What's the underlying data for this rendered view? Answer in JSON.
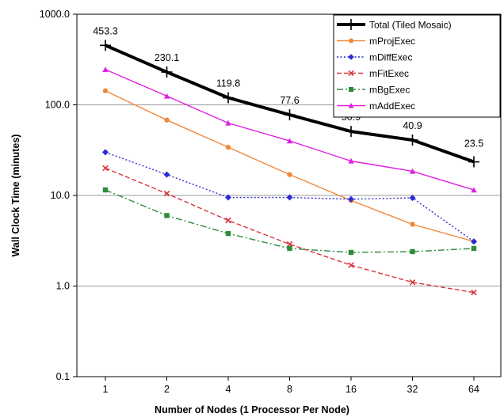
{
  "chart_data": {
    "type": "line",
    "title": "",
    "xlabel": "Number of Nodes (1 Processor Per Node)",
    "ylabel": "Wall Clock Time (minutes)",
    "y_scale": "log",
    "ylim": [
      0.1,
      1000
    ],
    "y_ticks": [
      "0.1",
      "1.0",
      "10.0",
      "100.0",
      "1000.0"
    ],
    "categories": [
      "1",
      "2",
      "4",
      "8",
      "16",
      "32",
      "64"
    ],
    "grid": "horizontal",
    "legend_position": "top-right",
    "series": [
      {
        "name": "Total (Tiled Mosaic)",
        "values": [
          453.3,
          230.1,
          119.8,
          77.6,
          50.9,
          40.9,
          23.5
        ],
        "color": "#000000",
        "marker": "plus",
        "dash": "solid",
        "labels": [
          "453.3",
          "230.1",
          "119.8",
          "77.6",
          "50.9",
          "40.9",
          "23.5"
        ]
      },
      {
        "name": "mProjExec",
        "values": [
          143,
          68,
          34,
          17,
          8.8,
          4.8,
          3.1
        ],
        "color": "#f0883c",
        "marker": "circle",
        "dash": "solid"
      },
      {
        "name": "mDiffExec",
        "values": [
          30,
          17,
          9.5,
          9.5,
          9.1,
          9.4,
          3.1
        ],
        "color": "#2b2bd6",
        "marker": "diamond",
        "dash": "dotted"
      },
      {
        "name": "mFitExec",
        "values": [
          20,
          10.5,
          5.3,
          2.9,
          1.7,
          1.1,
          0.85
        ],
        "color": "#d8343c",
        "marker": "x",
        "dash": "dash"
      },
      {
        "name": "mBgExec",
        "values": [
          11.5,
          6,
          3.8,
          2.6,
          2.35,
          2.4,
          2.6
        ],
        "color": "#2e8b3a",
        "marker": "square",
        "dash": "dashdot"
      },
      {
        "name": "mAddExec",
        "values": [
          245,
          125,
          63,
          40,
          24,
          18.5,
          11.5
        ],
        "color": "#e020e0",
        "marker": "triangle",
        "dash": "solid"
      }
    ]
  }
}
